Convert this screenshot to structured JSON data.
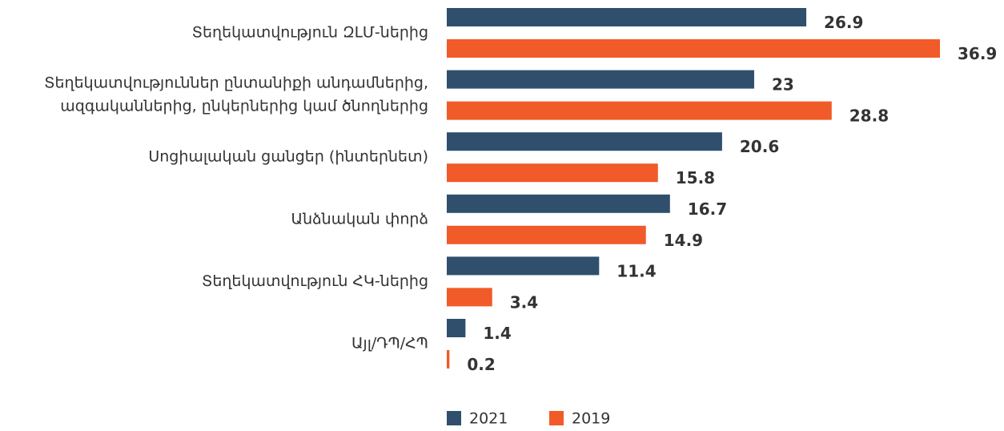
{
  "chart_data": {
    "type": "bar",
    "orientation": "horizontal",
    "categories": [
      [
        "Տեղեկատվություն ԶԼՄ-ներից"
      ],
      [
        "Տեղեկատվություններ ընտանիքի անդամներից,",
        "ազգականներից, ընկերներից կամ ծնողներից"
      ],
      [
        "Սոցիալական ցանցեր (ինտերնետ)"
      ],
      [
        "Անձնական փորձ"
      ],
      [
        "Տեղեկատվություն ՀԿ-ներից"
      ],
      [
        "Այլ/ԴՊ/ՀՊ"
      ]
    ],
    "series": [
      {
        "name": "2021",
        "color": "#2f4f6d",
        "values": [
          26.9,
          23,
          20.6,
          16.7,
          11.4,
          1.4
        ]
      },
      {
        "name": "2019",
        "color": "#f15a29",
        "values": [
          36.9,
          28.8,
          15.8,
          14.9,
          3.4,
          0.2
        ]
      }
    ],
    "legend": "bottom"
  }
}
